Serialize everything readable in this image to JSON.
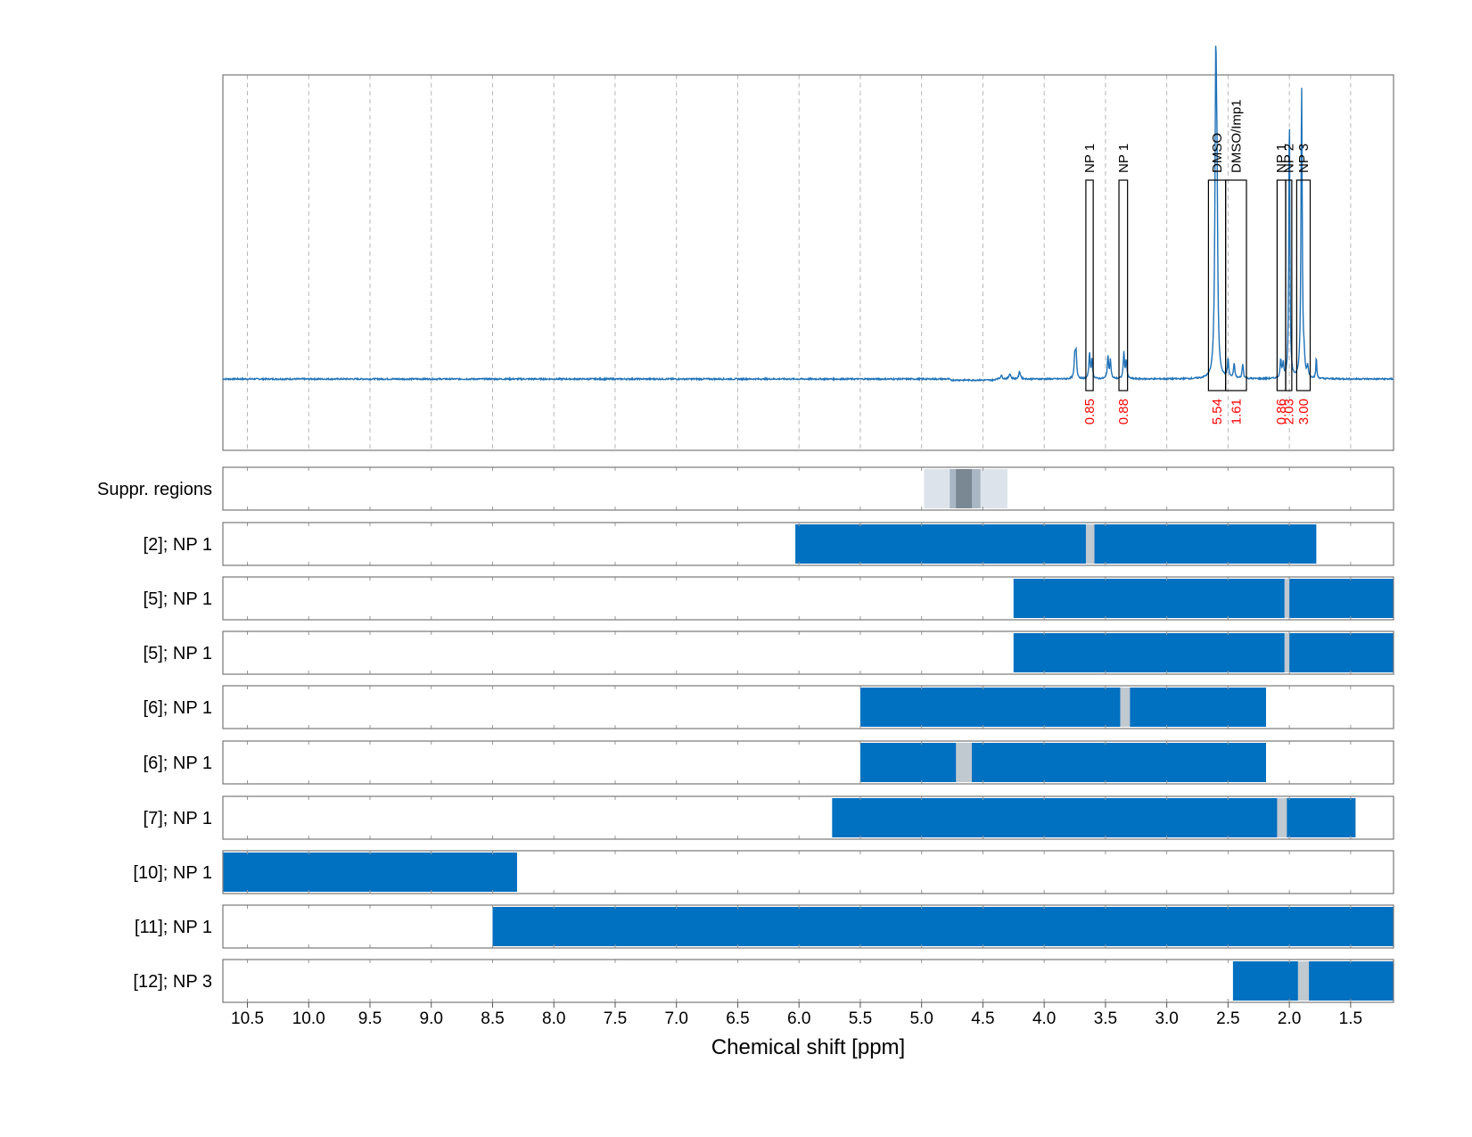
{
  "chart_data": {
    "type": "nmr-spectrum-with-region-tracks",
    "xlabel": "Chemical shift [ppm]",
    "xlim": [
      10.7,
      1.15
    ],
    "xticks": [
      "10.5",
      "10.0",
      "9.5",
      "9.0",
      "8.5",
      "8.0",
      "7.5",
      "7.0",
      "6.5",
      "6.0",
      "5.5",
      "5.0",
      "4.5",
      "4.0",
      "3.5",
      "3.0",
      "2.5",
      "2.0",
      "1.5"
    ],
    "colors": {
      "spectrum": "#1f72b8",
      "bar": "#0070c0",
      "gap": "#c0c8d0",
      "integral": "#ff0000",
      "supp_light": "#dce3ea",
      "supp_mid": "#a9b6c3",
      "supp_dark": "#7a8893"
    },
    "spectrum": {
      "peaks": [
        {
          "ppm": 2.6,
          "height": 0.84,
          "width": 0.008
        },
        {
          "ppm": 2.59,
          "height": 0.35,
          "width": 0.006
        },
        {
          "ppm": 1.9,
          "height": 0.8,
          "width": 0.006
        },
        {
          "ppm": 2.0,
          "height": 0.74,
          "width": 0.005
        },
        {
          "ppm": 3.75,
          "height": 0.06,
          "width": 0.006
        },
        {
          "ppm": 3.74,
          "height": 0.07,
          "width": 0.006
        },
        {
          "ppm": 3.63,
          "height": 0.07,
          "width": 0.006
        },
        {
          "ppm": 3.61,
          "height": 0.05,
          "width": 0.006
        },
        {
          "ppm": 3.48,
          "height": 0.06,
          "width": 0.006
        },
        {
          "ppm": 3.46,
          "height": 0.05,
          "width": 0.006
        },
        {
          "ppm": 3.35,
          "height": 0.07,
          "width": 0.006
        },
        {
          "ppm": 3.33,
          "height": 0.05,
          "width": 0.006
        },
        {
          "ppm": 2.5,
          "height": 0.05,
          "width": 0.006
        },
        {
          "ppm": 2.45,
          "height": 0.04,
          "width": 0.006
        },
        {
          "ppm": 2.38,
          "height": 0.04,
          "width": 0.006
        },
        {
          "ppm": 2.07,
          "height": 0.05,
          "width": 0.006
        },
        {
          "ppm": 2.05,
          "height": 0.04,
          "width": 0.006
        },
        {
          "ppm": 1.88,
          "height": 0.04,
          "width": 0.006
        },
        {
          "ppm": 1.85,
          "height": 0.03,
          "width": 0.006
        },
        {
          "ppm": 1.78,
          "height": 0.06,
          "width": 0.004
        },
        {
          "ppm": 4.2,
          "height": 0.02,
          "width": 0.008
        },
        {
          "ppm": 4.28,
          "height": 0.015,
          "width": 0.008
        },
        {
          "ppm": 4.35,
          "height": 0.01,
          "width": 0.008
        }
      ],
      "assignments": [
        {
          "label": "NP 1",
          "lo": 3.6,
          "hi": 3.66,
          "integral": "0.85"
        },
        {
          "label": "NP 1",
          "lo": 3.32,
          "hi": 3.39,
          "integral": "0.88"
        },
        {
          "label": "DMSO",
          "lo": 2.52,
          "hi": 2.66,
          "integral": "5.54"
        },
        {
          "label": "DMSO/Imp1",
          "lo": 2.35,
          "hi": 2.52,
          "integral": "1.61"
        },
        {
          "label": "NP 1",
          "lo": 2.03,
          "hi": 2.1,
          "integral": "0.86"
        },
        {
          "label": "NP 2",
          "lo": 1.98,
          "hi": 2.03,
          "integral": "2.03"
        },
        {
          "label": "NP 3",
          "lo": 1.83,
          "hi": 1.94,
          "integral": "3.00"
        }
      ]
    },
    "suppressed_regions": {
      "label": "Suppr. regions",
      "bands": [
        {
          "lo": 4.3,
          "hi": 4.98,
          "shade": "light"
        },
        {
          "lo": 4.52,
          "hi": 4.77,
          "shade": "mid"
        },
        {
          "lo": 4.59,
          "hi": 4.72,
          "shade": "dark"
        }
      ]
    },
    "tracks": [
      {
        "label": "[2]; NP 1",
        "start": 6.03,
        "end": 1.78,
        "gap": [
          3.66,
          3.59
        ]
      },
      {
        "label": "[5]; NP 1",
        "start": 4.25,
        "end": 1.15,
        "gap": [
          2.04,
          2.0
        ]
      },
      {
        "label": "[5]; NP 1",
        "start": 4.25,
        "end": 1.15,
        "gap": [
          2.04,
          2.0
        ]
      },
      {
        "label": "[6]; NP 1",
        "start": 5.5,
        "end": 2.19,
        "gap": [
          3.38,
          3.3
        ]
      },
      {
        "label": "[6]; NP 1",
        "start": 5.5,
        "end": 2.19,
        "gap": [
          4.72,
          4.59
        ]
      },
      {
        "label": "[7]; NP 1",
        "start": 5.73,
        "end": 1.46,
        "gap": [
          2.1,
          2.02
        ]
      },
      {
        "label": "[10]; NP 1",
        "start": 10.7,
        "end": 8.3,
        "gap": null
      },
      {
        "label": "[11]; NP 1",
        "start": 8.5,
        "end": 1.15,
        "gap": null
      },
      {
        "label": "[12]; NP 3",
        "start": 2.46,
        "end": 1.15,
        "gap": [
          1.93,
          1.84
        ]
      }
    ]
  }
}
